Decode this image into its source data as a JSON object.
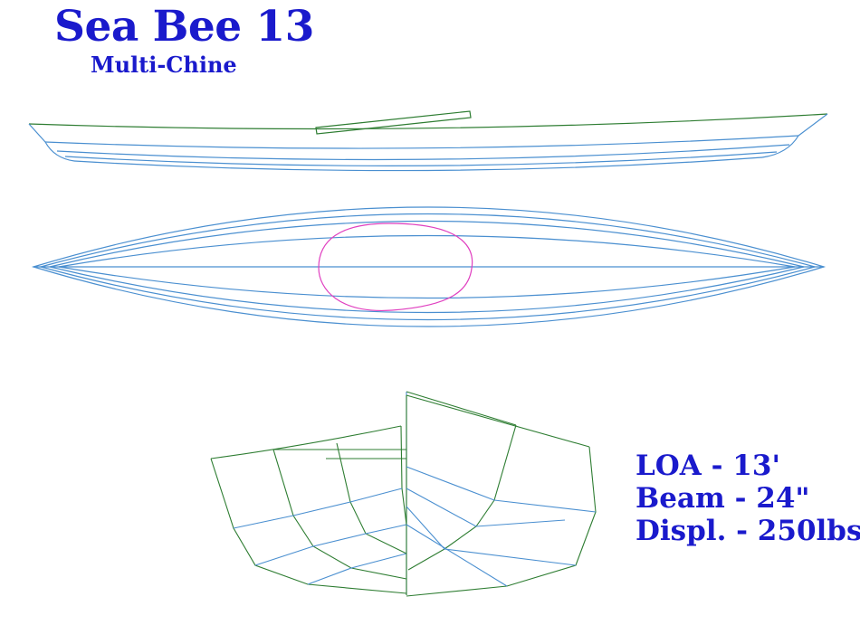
{
  "title": "Sea Bee 13",
  "subtitle": "Multi-Chine",
  "specs": {
    "loa": "LOA - 13'",
    "beam": "Beam - 24\"",
    "displacement": "Displ. - 250lbs"
  },
  "colors": {
    "text": "#1a1acc",
    "hull_lines": "#4a8fd0",
    "sheer_lines": "#2e7d32",
    "cockpit": "#e040c0"
  }
}
